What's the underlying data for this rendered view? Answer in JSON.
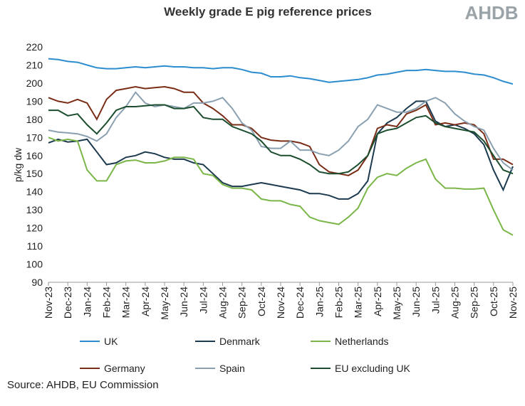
{
  "chart_data": {
    "type": "line",
    "title": "Weekly grade E pig reference prices",
    "logo": "AHDB",
    "y_label": "p/kg dw",
    "source": "Source: AHDB, EU Commission",
    "categories": [
      "Nov-23",
      null,
      "Dec-23",
      null,
      "Jan-24",
      null,
      "Feb-24",
      null,
      "Mar-24",
      null,
      "Apr-24",
      null,
      "May-24",
      null,
      "Jun-24",
      null,
      "Jul-24",
      null,
      "Aug-24",
      null,
      "Sep-24",
      null,
      "Oct-24",
      null,
      "Nov-24",
      null,
      "Dec-24",
      null,
      "Jan-25",
      null,
      "Feb-25",
      null,
      "Mar-25",
      null,
      "Apr-25",
      null,
      "May-25",
      null,
      "Jun-25",
      null,
      "Jul-25",
      null,
      "Aug-25",
      null,
      "Sep-25",
      null,
      "Oct-25",
      null,
      "Nov-25"
    ],
    "ylim": [
      90,
      220
    ],
    "yticks": [
      90,
      100,
      110,
      120,
      130,
      140,
      150,
      160,
      170,
      180,
      190,
      200,
      210,
      220
    ],
    "series": [
      {
        "name": "UK",
        "color": "#2b8ccf",
        "values": [
          213.5,
          213,
          212,
          211.5,
          210,
          208.5,
          208,
          208,
          208.5,
          209,
          208.5,
          209,
          209.5,
          209,
          209,
          208.5,
          208.5,
          208,
          208.5,
          208.5,
          207.5,
          206,
          205.5,
          203.5,
          203.5,
          204,
          203,
          202.5,
          201.5,
          200.5,
          201,
          201.5,
          202,
          203,
          204.5,
          205,
          206,
          207,
          207,
          207.5,
          207,
          206.5,
          206.5,
          206,
          205,
          204.5,
          203,
          201,
          199.5
        ]
      },
      {
        "name": "Denmark",
        "color": "#1c3a4f",
        "values": [
          167,
          169,
          167.5,
          168,
          169,
          162,
          155,
          156,
          159,
          160,
          162,
          161,
          159,
          158,
          158,
          156,
          155,
          150,
          145,
          143,
          143,
          144,
          145,
          144,
          143,
          142,
          141,
          139,
          139,
          138,
          136,
          136,
          139,
          146,
          172,
          178,
          181,
          186,
          190,
          190,
          179,
          176,
          177,
          175,
          172,
          166,
          152,
          141,
          154
        ]
      },
      {
        "name": "Netherlands",
        "color": "#7ab648",
        "values": [
          170,
          168,
          169,
          168,
          152,
          146,
          146,
          155,
          157,
          157.5,
          156,
          156,
          157,
          159,
          159,
          158,
          150,
          149,
          144,
          142,
          142,
          141,
          136,
          135,
          135,
          133,
          132,
          126,
          124,
          123,
          122,
          126,
          131,
          142,
          148,
          150,
          149,
          153,
          156,
          158,
          147,
          142,
          142,
          141.5,
          141.5,
          142,
          130,
          119,
          116
        ]
      },
      {
        "name": "Germany",
        "color": "#7a2d16",
        "values": [
          192,
          190,
          189,
          191,
          189,
          180,
          191,
          196,
          197,
          198,
          197,
          197.5,
          198,
          197,
          195,
          195,
          189,
          186,
          182,
          177,
          177,
          175,
          170,
          168.5,
          168,
          168,
          167,
          165,
          155,
          151,
          150,
          149,
          152,
          160,
          175,
          177,
          176,
          183,
          185,
          188,
          177,
          178,
          177,
          178,
          177,
          172,
          158,
          158,
          155
        ]
      },
      {
        "name": "Spain",
        "color": "#8aa0b0",
        "values": [
          174,
          173,
          172.5,
          172,
          170.5,
          168,
          172,
          181,
          187,
          195,
          189,
          187,
          188,
          187,
          186,
          189,
          189,
          190,
          192,
          186,
          178,
          174,
          165,
          164,
          164,
          168,
          163,
          163,
          161,
          160,
          163,
          168,
          176,
          180,
          188,
          186,
          184,
          184,
          186,
          190,
          192,
          189,
          183,
          179,
          176,
          174,
          164,
          156,
          152
        ]
      },
      {
        "name": "EU excluding UK",
        "color": "#1b4d2e",
        "values": [
          185,
          185,
          182,
          183,
          177,
          172,
          178,
          185,
          187,
          187,
          187.5,
          188,
          188,
          186,
          186,
          187,
          181,
          180,
          180,
          176,
          174,
          172,
          168,
          162,
          160,
          160,
          158,
          155,
          151,
          150,
          150,
          151,
          155,
          160,
          172,
          174,
          175,
          178,
          181,
          182,
          178,
          176,
          175,
          174,
          173,
          168,
          160,
          152,
          150
        ]
      }
    ]
  }
}
